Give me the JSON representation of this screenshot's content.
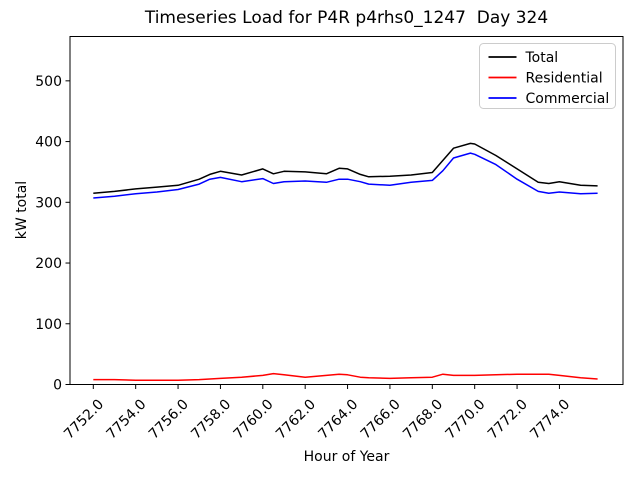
{
  "figure": {
    "title": "Timeseries Load for P4R p4rhs0_1247  Day 324",
    "xlabel": "Hour of Year",
    "ylabel": "kW total",
    "background_color": "#ffffff",
    "frame_color": "#000000"
  },
  "legend": {
    "position": "upper right",
    "border_color": "#cccccc",
    "entries": [
      {
        "label": "Total",
        "color": "#000000"
      },
      {
        "label": "Residential",
        "color": "#ff0000"
      },
      {
        "label": "Commercial",
        "color": "#0000ff"
      }
    ]
  },
  "chart_data": {
    "type": "line",
    "title": "Timeseries Load for P4R p4rhs0_1247  Day 324",
    "xlabel": "Hour of Year",
    "ylabel": "kW total",
    "xlim": [
      7750.9,
      7777.0
    ],
    "ylim": [
      0,
      573
    ],
    "grid": false,
    "legend_position": "upper right",
    "x_ticks": [
      7752,
      7754,
      7756,
      7758,
      7760,
      7762,
      7764,
      7766,
      7768,
      7770,
      7772,
      7774
    ],
    "x_tick_labels": [
      "7752.0",
      "7754.0",
      "7756.0",
      "7758.0",
      "7760.0",
      "7762.0",
      "7764.0",
      "7766.0",
      "7768.0",
      "7770.0",
      "7772.0",
      "7774.0"
    ],
    "x_tick_rotation": 45,
    "y_ticks": [
      0,
      100,
      200,
      300,
      400,
      500
    ],
    "y_tick_labels": [
      "0",
      "100",
      "200",
      "300",
      "400",
      "500"
    ],
    "x": [
      7752,
      7753,
      7754,
      7755,
      7756,
      7757,
      7757.5,
      7758,
      7759,
      7760,
      7760.5,
      7761,
      7762,
      7763,
      7763.6,
      7764,
      7764.6,
      7765,
      7766,
      7767,
      7768,
      7768.5,
      7769,
      7769.8,
      7770,
      7771,
      7772,
      7773,
      7773.5,
      7774,
      7775,
      7775.8
    ],
    "series": [
      {
        "name": "Total",
        "color": "#000000",
        "linewidth": 1.5,
        "values": [
          315,
          318,
          322,
          325,
          328,
          338,
          346,
          351,
          345,
          355,
          347,
          351,
          350,
          347,
          356,
          355,
          346,
          342,
          343,
          345,
          349,
          369,
          389,
          397,
          396,
          377,
          355,
          333,
          331,
          334,
          328,
          327
        ]
      },
      {
        "name": "Residential",
        "color": "#ff0000",
        "linewidth": 1.5,
        "values": [
          8,
          8,
          7,
          7,
          7,
          8,
          9,
          10,
          12,
          15,
          18,
          16,
          12,
          15,
          17,
          16,
          12,
          11,
          10,
          11,
          12,
          17,
          15,
          15,
          15,
          16,
          17,
          17,
          17,
          15,
          11,
          9
        ]
      },
      {
        "name": "Commercial",
        "color": "#0000ff",
        "linewidth": 1.5,
        "values": [
          307,
          310,
          314,
          317,
          321,
          330,
          338,
          341,
          334,
          339,
          331,
          334,
          335,
          333,
          338,
          338,
          334,
          330,
          328,
          333,
          336,
          352,
          373,
          381,
          379,
          362,
          338,
          318,
          315,
          317,
          314,
          315
        ]
      }
    ]
  }
}
